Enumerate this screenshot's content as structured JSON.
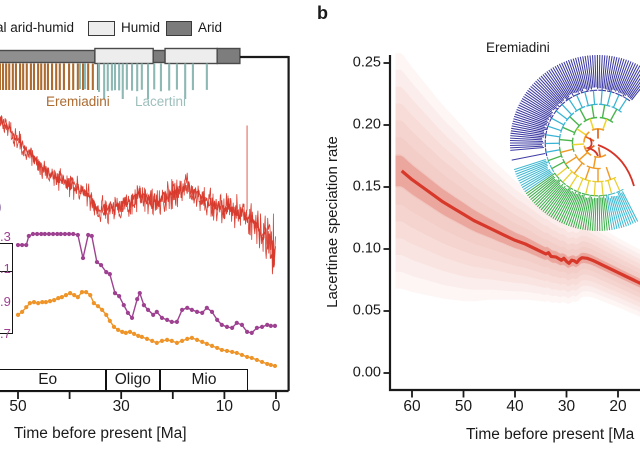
{
  "figure": {
    "panel_a": {
      "legend": {
        "fragment": "al arid-humid",
        "humid": "Humid",
        "arid": "Arid"
      },
      "tribes": {
        "eremiadini": "Eremiadini",
        "lacertini": "Lacertini"
      },
      "cut": {
        "paren": ")",
        "l1": ".3",
        "l2": ".1",
        "l3": ".9",
        "l4": ".7"
      },
      "xlabel": "Time before present [Ma]"
    },
    "panel_b": {
      "label": "b",
      "ylabel": "Lacertinae speciation rate",
      "xlabel": "Time before present [Ma",
      "inset_label": "Eremiadini"
    },
    "colors": {
      "red": "#d7382a",
      "purple": "#9e4191",
      "orange": "#ee9428",
      "brown": "#ad6b30",
      "teal": "#8db8b4",
      "arid": "#7b7b7b",
      "humid": "#ededed",
      "spine": "#1a1a1a"
    }
  },
  "chart_data": [
    {
      "id": "panel_a",
      "type": "line",
      "note": "left part of panel cropped; vertical axes not visible, y given as fraction of plot height (0=top)",
      "xlabel": "Time before present [Ma]",
      "xlim": [
        53.5,
        -2.5
      ],
      "x_tick_values": [
        50,
        40,
        30,
        20,
        10,
        0
      ],
      "x_tick_labels": [
        "50",
        "",
        "30",
        "",
        "10",
        "0"
      ],
      "epochs": [
        {
          "label": "Eo",
          "from_ma": 55.5,
          "to_ma": 33.0
        },
        {
          "label": "Oligo",
          "from_ma": 33.0,
          "to_ma": 22.5
        },
        {
          "label": "Mio",
          "from_ma": 22.5,
          "to_ma": 5.4
        }
      ],
      "climate_bar": {
        "arid_color": "#8f8f8f",
        "humid_color": "#ededed",
        "segments": [
          {
            "type": "arid",
            "from_ma": 56.0,
            "to_ma": 35.1
          },
          {
            "type": "humid",
            "from_ma": 35.1,
            "to_ma": 23.8
          },
          {
            "type": "arid",
            "from_ma": 23.8,
            "to_ma": 21.5
          },
          {
            "type": "humid",
            "from_ma": 21.5,
            "to_ma": 11.4
          },
          {
            "type": "arid",
            "from_ma": 11.4,
            "to_ma": 7.0
          }
        ]
      },
      "eremiadini_tip_ages_ma": [
        53.5,
        52.9,
        52.3,
        51.7,
        51.0,
        50.4,
        49.6,
        49.0,
        48.3,
        47.5,
        46.9,
        46.1,
        45.5,
        44.8,
        44.2,
        43.4,
        42.6,
        41.9,
        41.1,
        40.1,
        39.3,
        38.4,
        37.4,
        36.4,
        35.5,
        34.5
      ],
      "lacertini_tip_ages_ma": [
        38.0,
        37.0,
        34.3,
        33.3,
        32.6,
        31.8,
        31.2,
        30.4,
        29.7,
        28.9,
        27.9,
        26.9,
        26.0,
        24.8,
        23.6,
        22.3,
        20.7,
        19.2,
        17.6,
        16.1,
        13.4
      ],
      "red_series": {
        "name": "climate proxy (noisy band)",
        "color": "#d7382a",
        "points_ma_yfrac_amp": [
          [
            53.5,
            0.183,
            0.033
          ],
          [
            52,
            0.21,
            0.034
          ],
          [
            50,
            0.25,
            0.036
          ],
          [
            48,
            0.285,
            0.038
          ],
          [
            46,
            0.32,
            0.04
          ],
          [
            44,
            0.345,
            0.04
          ],
          [
            42,
            0.365,
            0.042
          ],
          [
            40,
            0.383,
            0.044
          ],
          [
            38.5,
            0.395,
            0.046
          ],
          [
            37,
            0.4,
            0.048
          ],
          [
            36,
            0.425,
            0.05
          ],
          [
            35,
            0.45,
            0.052
          ],
          [
            34,
            0.46,
            0.056
          ],
          [
            32,
            0.455,
            0.056
          ],
          [
            30,
            0.445,
            0.054
          ],
          [
            28,
            0.43,
            0.054
          ],
          [
            26.5,
            0.41,
            0.054
          ],
          [
            25,
            0.43,
            0.054
          ],
          [
            23.5,
            0.435,
            0.053
          ],
          [
            22,
            0.425,
            0.053
          ],
          [
            20,
            0.41,
            0.054
          ],
          [
            18,
            0.395,
            0.055
          ],
          [
            17,
            0.39,
            0.056
          ],
          [
            15.5,
            0.41,
            0.056
          ],
          [
            14,
            0.43,
            0.056
          ],
          [
            12,
            0.44,
            0.058
          ],
          [
            10,
            0.45,
            0.06
          ],
          [
            8,
            0.46,
            0.062
          ],
          [
            6,
            0.47,
            0.066
          ],
          [
            4,
            0.5,
            0.075
          ],
          [
            2.5,
            0.53,
            0.085
          ],
          [
            1.5,
            0.545,
            0.1
          ],
          [
            0.5,
            0.585,
            0.125
          ],
          [
            0.05,
            0.6,
            0.13
          ]
        ],
        "spike": {
          "ma": 5.6,
          "yfrac_top": 0.205,
          "yfrac_bottom": 0.46
        }
      },
      "purple_series": {
        "color": "#9e4191",
        "points_ma_yfrac": [
          [
            50.0,
            0.563
          ],
          [
            49.2,
            0.563
          ],
          [
            48.4,
            0.563
          ],
          [
            47.9,
            0.536
          ],
          [
            47.1,
            0.53
          ],
          [
            46.3,
            0.53
          ],
          [
            45.5,
            0.53
          ],
          [
            44.8,
            0.53
          ],
          [
            44.0,
            0.53
          ],
          [
            43.2,
            0.53
          ],
          [
            42.4,
            0.53
          ],
          [
            41.7,
            0.53
          ],
          [
            40.9,
            0.53
          ],
          [
            40.1,
            0.53
          ],
          [
            39.3,
            0.53
          ],
          [
            38.4,
            0.533
          ],
          [
            37.4,
            0.602
          ],
          [
            36.4,
            0.533
          ],
          [
            35.7,
            0.536
          ],
          [
            34.7,
            0.614
          ],
          [
            33.9,
            0.623
          ],
          [
            32.9,
            0.644
          ],
          [
            32.2,
            0.65
          ],
          [
            31.2,
            0.707
          ],
          [
            30.4,
            0.716
          ],
          [
            29.5,
            0.743
          ],
          [
            28.7,
            0.766
          ],
          [
            27.9,
            0.781
          ],
          [
            26.9,
            0.725
          ],
          [
            26.4,
            0.707
          ],
          [
            25.6,
            0.743
          ],
          [
            24.8,
            0.757
          ],
          [
            23.8,
            0.772
          ],
          [
            23.1,
            0.763
          ],
          [
            22.1,
            0.781
          ],
          [
            21.1,
            0.787
          ],
          [
            20.2,
            0.793
          ],
          [
            19.2,
            0.793
          ],
          [
            18.2,
            0.757
          ],
          [
            17.2,
            0.751
          ],
          [
            16.3,
            0.757
          ],
          [
            15.3,
            0.763
          ],
          [
            14.3,
            0.766
          ],
          [
            13.4,
            0.751
          ],
          [
            12.4,
            0.763
          ],
          [
            11.4,
            0.787
          ],
          [
            10.5,
            0.802
          ],
          [
            9.5,
            0.808
          ],
          [
            8.5,
            0.811
          ],
          [
            7.6,
            0.796
          ],
          [
            6.6,
            0.802
          ],
          [
            5.6,
            0.823
          ],
          [
            4.7,
            0.826
          ],
          [
            3.7,
            0.811
          ],
          [
            2.7,
            0.808
          ],
          [
            1.7,
            0.802
          ],
          [
            1.0,
            0.805
          ],
          [
            0.2,
            0.805
          ]
        ]
      },
      "orange_series": {
        "color": "#ee9428",
        "points_ma_yfrac": [
          [
            50.0,
            0.772
          ],
          [
            49.2,
            0.763
          ],
          [
            48.4,
            0.749
          ],
          [
            47.7,
            0.737
          ],
          [
            46.9,
            0.734
          ],
          [
            46.1,
            0.737
          ],
          [
            45.3,
            0.734
          ],
          [
            44.6,
            0.734
          ],
          [
            43.8,
            0.731
          ],
          [
            43.0,
            0.728
          ],
          [
            42.2,
            0.722
          ],
          [
            41.5,
            0.719
          ],
          [
            40.7,
            0.713
          ],
          [
            39.9,
            0.707
          ],
          [
            39.1,
            0.713
          ],
          [
            38.4,
            0.719
          ],
          [
            37.6,
            0.704
          ],
          [
            36.8,
            0.704
          ],
          [
            36.0,
            0.713
          ],
          [
            35.3,
            0.737
          ],
          [
            34.5,
            0.746
          ],
          [
            33.7,
            0.757
          ],
          [
            32.9,
            0.772
          ],
          [
            32.2,
            0.79
          ],
          [
            31.4,
            0.808
          ],
          [
            30.6,
            0.817
          ],
          [
            29.8,
            0.823
          ],
          [
            29.1,
            0.826
          ],
          [
            28.3,
            0.823
          ],
          [
            27.5,
            0.829
          ],
          [
            26.7,
            0.835
          ],
          [
            26.0,
            0.838
          ],
          [
            25.0,
            0.844
          ],
          [
            24.0,
            0.85
          ],
          [
            23.1,
            0.856
          ],
          [
            22.1,
            0.85
          ],
          [
            21.1,
            0.847
          ],
          [
            20.2,
            0.85
          ],
          [
            19.2,
            0.856
          ],
          [
            18.2,
            0.85
          ],
          [
            17.2,
            0.844
          ],
          [
            16.3,
            0.841
          ],
          [
            15.3,
            0.847
          ],
          [
            14.3,
            0.853
          ],
          [
            13.4,
            0.859
          ],
          [
            12.4,
            0.865
          ],
          [
            11.4,
            0.871
          ],
          [
            10.5,
            0.877
          ],
          [
            9.5,
            0.88
          ],
          [
            8.5,
            0.883
          ],
          [
            7.6,
            0.886
          ],
          [
            6.6,
            0.892
          ],
          [
            5.6,
            0.898
          ],
          [
            4.7,
            0.901
          ],
          [
            3.7,
            0.907
          ],
          [
            2.7,
            0.913
          ],
          [
            1.7,
            0.919
          ],
          [
            1.0,
            0.922
          ],
          [
            0.2,
            0.925
          ]
        ]
      }
    },
    {
      "id": "panel_b",
      "type": "line",
      "ylabel": "Lacertinae speciation rate",
      "xlabel": "Time before present [Ma",
      "ylim": [
        0,
        0.26
      ],
      "xlim": [
        64,
        15.5
      ],
      "y_tick_values": [
        0.25,
        0.2,
        0.15,
        0.1,
        0.05,
        0.0
      ],
      "y_tick_labels": [
        "0.25",
        "0.20",
        "0.15",
        "0.10",
        "0.05",
        "0.00"
      ],
      "x_tick_values": [
        60,
        50,
        40,
        30,
        20
      ],
      "x_tick_labels": [
        "60",
        "50",
        "40",
        "30",
        "20"
      ],
      "line": {
        "color": "#d7382a",
        "points_ma_rate": [
          [
            62,
            0.163
          ],
          [
            60,
            0.156
          ],
          [
            58,
            0.15
          ],
          [
            56,
            0.144
          ],
          [
            54,
            0.138
          ],
          [
            52,
            0.133
          ],
          [
            50,
            0.128
          ],
          [
            48,
            0.123
          ],
          [
            46,
            0.119
          ],
          [
            44,
            0.115
          ],
          [
            42,
            0.111
          ],
          [
            40,
            0.107
          ],
          [
            38,
            0.104
          ],
          [
            36,
            0.1
          ],
          [
            35,
            0.098
          ],
          [
            34,
            0.096
          ],
          [
            33.5,
            0.097
          ],
          [
            33,
            0.094
          ],
          [
            32,
            0.0935
          ],
          [
            31,
            0.091
          ],
          [
            30.5,
            0.0925
          ],
          [
            30,
            0.09
          ],
          [
            29.5,
            0.0885
          ],
          [
            29,
            0.091
          ],
          [
            28.5,
            0.0905
          ],
          [
            28,
            0.089
          ],
          [
            27.5,
            0.0915
          ],
          [
            27,
            0.093
          ],
          [
            26,
            0.0925
          ],
          [
            25,
            0.091
          ],
          [
            24,
            0.089
          ],
          [
            23,
            0.087
          ],
          [
            22,
            0.085
          ],
          [
            21,
            0.083
          ],
          [
            20,
            0.081
          ],
          [
            19,
            0.079
          ],
          [
            18,
            0.077
          ],
          [
            17,
            0.075
          ],
          [
            16,
            0.073
          ],
          [
            15.5,
            0.072
          ]
        ]
      },
      "uncertainty_band_halfwidth": [
        [
          62,
          0.095
        ],
        [
          55,
          0.08
        ],
        [
          50,
          0.07
        ],
        [
          45,
          0.058
        ],
        [
          40,
          0.048
        ],
        [
          35,
          0.04
        ],
        [
          30,
          0.034
        ],
        [
          25,
          0.03
        ],
        [
          20,
          0.028
        ],
        [
          15.5,
          0.027
        ]
      ],
      "inset": {
        "label": "Eremiadini",
        "type": "circular phylorate tree",
        "rate_palette": [
          "#3d3ba3",
          "#41b9d2",
          "#3fae4e",
          "#f0d32b",
          "#f09a23",
          "#d63426"
        ]
      }
    }
  ]
}
